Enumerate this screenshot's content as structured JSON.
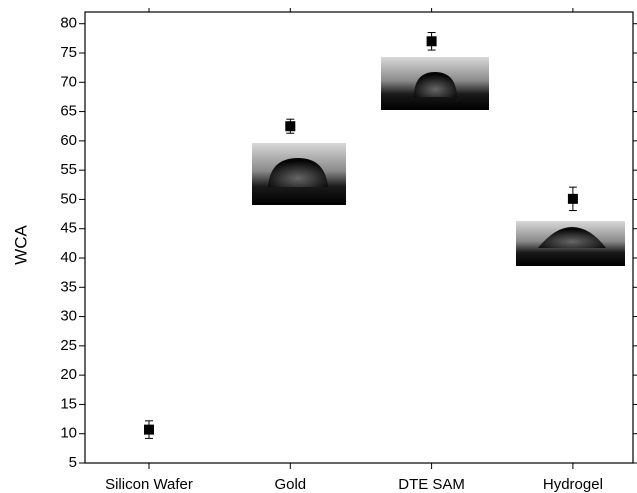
{
  "chart_data": {
    "type": "scatter",
    "y_label": "WCA",
    "categories": [
      "Silicon Wafer",
      "Gold",
      "DTE SAM",
      "Hydrogel"
    ],
    "values": [
      10.7,
      62.5,
      77.0,
      50.1
    ],
    "errors": [
      1.5,
      1.2,
      1.5,
      2.0
    ],
    "color": "#000000",
    "ylim": [
      5,
      82
    ],
    "yticks": [
      5,
      10,
      15,
      20,
      25,
      30,
      35,
      40,
      45,
      50,
      55,
      60,
      65,
      70,
      75,
      80
    ]
  }
}
